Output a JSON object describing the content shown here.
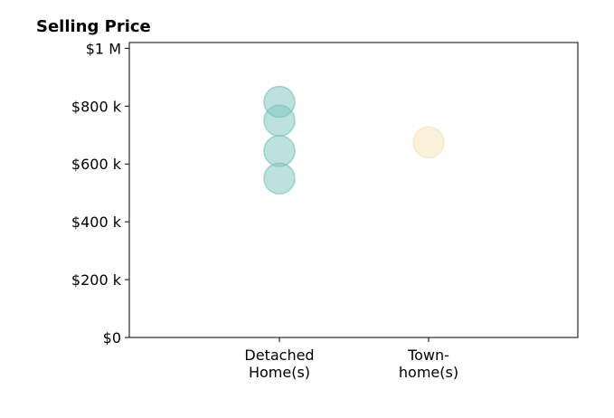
{
  "chart_data": {
    "type": "scatter",
    "title": "Selling Price",
    "xlabel": "",
    "ylabel": "",
    "categories": [
      "Detached\nHome(s)",
      "Town-\nhome(s)"
    ],
    "ylim": [
      0,
      1020000
    ],
    "yticks": [
      0,
      200000,
      400000,
      600000,
      800000,
      1000000
    ],
    "ytick_labels": [
      "$0",
      "$200 k",
      "$400 k",
      "$600 k",
      "$800 k",
      "$1 M"
    ],
    "grid": false,
    "series": [
      {
        "category": "Detached\nHome(s)",
        "color": "#7cc4bf",
        "values": [
          815000,
          750000,
          645000,
          550000
        ]
      },
      {
        "category": "Town-\nhome(s)",
        "color": "#f6e3b8",
        "values": [
          675000
        ]
      }
    ]
  }
}
